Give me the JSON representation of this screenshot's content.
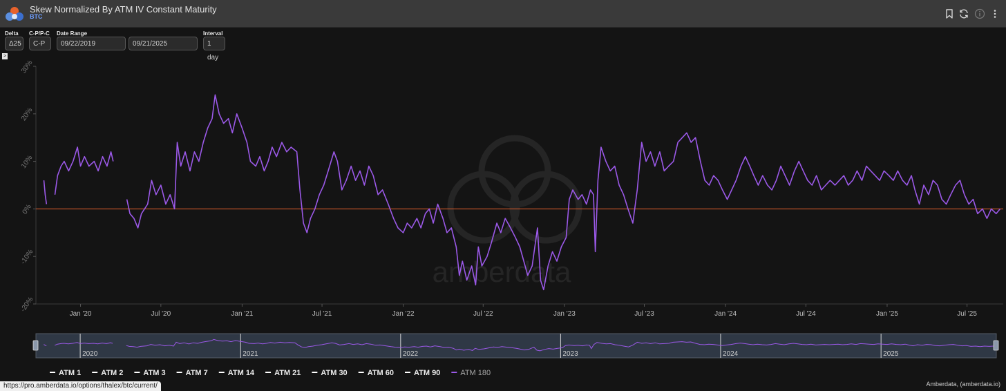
{
  "header": {
    "title": "Skew Normalized By ATM IV Constant Maturity",
    "subtitle": "BTC",
    "icons": [
      "bookmark-icon",
      "refresh-icon",
      "info-icon",
      "more-vertical-icon"
    ]
  },
  "controls": {
    "delta": {
      "label": "Delta",
      "value": "Δ25"
    },
    "cp": {
      "label": "C-P/P-C",
      "value": "C-P"
    },
    "date_range": {
      "label": "Date Range",
      "start": "09/22/2019",
      "end": "09/21/2025"
    },
    "interval": {
      "label": "Interval",
      "value": "1 day"
    }
  },
  "expand_toggle": ">",
  "watermark": "amberdata",
  "chart_data": {
    "type": "line",
    "xlabel": "",
    "ylabel": "",
    "ylim": [
      -20,
      30
    ],
    "yticks": [
      "-20%",
      "-10%",
      "0%",
      "10%",
      "20%",
      "30%"
    ],
    "xticks": [
      "Jan '20",
      "Jul '20",
      "Jan '21",
      "Jul '21",
      "Jan '22",
      "Jul '22",
      "Jan '23",
      "Jul '23",
      "Jan '24",
      "Jul '24",
      "Jan '25",
      "Jul '25"
    ],
    "xtick_dates": [
      "2020-01-01",
      "2020-07-01",
      "2021-01-01",
      "2021-07-01",
      "2022-01-01",
      "2022-07-01",
      "2023-01-01",
      "2023-07-01",
      "2024-01-01",
      "2024-07-01",
      "2025-01-01",
      "2025-07-01"
    ],
    "xlim": [
      "2019-09-22",
      "2025-09-21"
    ],
    "zero_line_color": "#e8622c",
    "series": [
      {
        "name": "ATM 180",
        "color": "#9b59e8",
        "segments": [
          [
            [
              "2019-10-10",
              6
            ],
            [
              "2019-10-13",
              3
            ],
            [
              "2019-10-16",
              1
            ]
          ],
          [
            [
              "2019-11-04",
              3
            ],
            [
              "2019-11-10",
              7
            ],
            [
              "2019-11-18",
              9
            ],
            [
              "2019-11-25",
              10
            ],
            [
              "2019-12-05",
              8
            ],
            [
              "2019-12-15",
              10
            ],
            [
              "2019-12-25",
              13
            ],
            [
              "2020-01-01",
              9
            ],
            [
              "2020-01-10",
              11
            ],
            [
              "2020-01-20",
              9
            ],
            [
              "2020-02-01",
              10
            ],
            [
              "2020-02-10",
              8
            ],
            [
              "2020-02-20",
              11
            ],
            [
              "2020-03-01",
              9
            ],
            [
              "2020-03-10",
              12
            ],
            [
              "2020-03-15",
              10
            ]
          ],
          [
            [
              "2020-04-15",
              2
            ],
            [
              "2020-04-22",
              -1
            ],
            [
              "2020-05-01",
              -2
            ],
            [
              "2020-05-10",
              -4
            ],
            [
              "2020-05-18",
              -1
            ],
            [
              "2020-05-25",
              0
            ],
            [
              "2020-06-01",
              1
            ],
            [
              "2020-06-10",
              6
            ],
            [
              "2020-06-20",
              3
            ],
            [
              "2020-07-01",
              5
            ],
            [
              "2020-07-12",
              1
            ],
            [
              "2020-07-22",
              3
            ],
            [
              "2020-08-01",
              0
            ],
            [
              "2020-08-07",
              14
            ],
            [
              "2020-08-15",
              9
            ],
            [
              "2020-08-25",
              12
            ],
            [
              "2020-09-05",
              8
            ],
            [
              "2020-09-15",
              12
            ],
            [
              "2020-09-25",
              10
            ],
            [
              "2020-10-05",
              14
            ],
            [
              "2020-10-15",
              17
            ],
            [
              "2020-10-25",
              19
            ],
            [
              "2020-11-01",
              24
            ],
            [
              "2020-11-10",
              20
            ],
            [
              "2020-11-20",
              18
            ],
            [
              "2020-12-01",
              19
            ],
            [
              "2020-12-10",
              16
            ],
            [
              "2020-12-20",
              20
            ],
            [
              "2021-01-01",
              17
            ],
            [
              "2021-01-12",
              14
            ],
            [
              "2021-01-20",
              10
            ],
            [
              "2021-02-01",
              9
            ],
            [
              "2021-02-10",
              11
            ],
            [
              "2021-02-20",
              8
            ],
            [
              "2021-03-01",
              10
            ],
            [
              "2021-03-10",
              13
            ],
            [
              "2021-03-20",
              11
            ],
            [
              "2021-04-01",
              14
            ],
            [
              "2021-04-12",
              12
            ],
            [
              "2021-04-22",
              13
            ],
            [
              "2021-05-05",
              12
            ],
            [
              "2021-05-12",
              4
            ],
            [
              "2021-05-20",
              -3
            ],
            [
              "2021-05-28",
              -5
            ],
            [
              "2021-06-05",
              -2
            ],
            [
              "2021-06-15",
              0
            ],
            [
              "2021-06-25",
              3
            ],
            [
              "2021-07-05",
              5
            ],
            [
              "2021-07-15",
              8
            ],
            [
              "2021-07-28",
              12
            ],
            [
              "2021-08-05",
              10
            ],
            [
              "2021-08-15",
              4
            ],
            [
              "2021-08-25",
              6
            ],
            [
              "2021-09-05",
              9
            ],
            [
              "2021-09-15",
              6
            ],
            [
              "2021-09-25",
              8
            ],
            [
              "2021-10-05",
              5
            ],
            [
              "2021-10-15",
              9
            ],
            [
              "2021-10-25",
              7
            ],
            [
              "2021-11-05",
              3
            ],
            [
              "2021-11-15",
              4
            ],
            [
              "2021-11-28",
              1
            ],
            [
              "2021-12-10",
              -2
            ],
            [
              "2021-12-20",
              -4
            ],
            [
              "2022-01-01",
              -5
            ],
            [
              "2022-01-10",
              -3
            ],
            [
              "2022-01-20",
              -4
            ],
            [
              "2022-02-01",
              -2
            ],
            [
              "2022-02-10",
              -4
            ],
            [
              "2022-02-20",
              -1
            ],
            [
              "2022-03-01",
              0
            ],
            [
              "2022-03-10",
              -3
            ],
            [
              "2022-03-20",
              1
            ],
            [
              "2022-04-01",
              -2
            ],
            [
              "2022-04-10",
              -5
            ],
            [
              "2022-04-20",
              -4
            ],
            [
              "2022-05-01",
              -8
            ],
            [
              "2022-05-08",
              -14
            ],
            [
              "2022-05-15",
              -11
            ],
            [
              "2022-05-25",
              -15
            ],
            [
              "2022-06-05",
              -12
            ],
            [
              "2022-06-14",
              -16
            ],
            [
              "2022-06-20",
              -8
            ],
            [
              "2022-06-28",
              -12
            ],
            [
              "2022-07-10",
              -10
            ],
            [
              "2022-07-20",
              -7
            ],
            [
              "2022-08-01",
              -3
            ],
            [
              "2022-08-10",
              -5
            ],
            [
              "2022-08-20",
              -2
            ],
            [
              "2022-09-01",
              -4
            ],
            [
              "2022-09-12",
              -6
            ],
            [
              "2022-09-22",
              -8
            ],
            [
              "2022-10-01",
              -11
            ],
            [
              "2022-10-10",
              -14
            ],
            [
              "2022-10-20",
              -12
            ],
            [
              "2022-11-01",
              -4
            ],
            [
              "2022-11-08",
              -15
            ],
            [
              "2022-11-15",
              -17
            ],
            [
              "2022-11-25",
              -12
            ],
            [
              "2022-12-05",
              -9
            ],
            [
              "2022-12-15",
              -11
            ],
            [
              "2022-12-25",
              -8
            ],
            [
              "2023-01-05",
              -6
            ],
            [
              "2023-01-12",
              2
            ],
            [
              "2023-01-20",
              4
            ],
            [
              "2023-02-01",
              2
            ],
            [
              "2023-02-10",
              3
            ],
            [
              "2023-02-20",
              1
            ],
            [
              "2023-03-01",
              4
            ],
            [
              "2023-03-08",
              3
            ],
            [
              "2023-03-12",
              -9
            ],
            [
              "2023-03-18",
              6
            ],
            [
              "2023-03-25",
              13
            ],
            [
              "2023-04-05",
              10
            ],
            [
              "2023-04-15",
              8
            ],
            [
              "2023-04-25",
              9
            ],
            [
              "2023-05-05",
              5
            ],
            [
              "2023-05-15",
              3
            ],
            [
              "2023-05-25",
              0
            ],
            [
              "2023-06-05",
              -3
            ],
            [
              "2023-06-15",
              4
            ],
            [
              "2023-06-25",
              14
            ],
            [
              "2023-07-05",
              10
            ],
            [
              "2023-07-15",
              12
            ],
            [
              "2023-07-25",
              9
            ],
            [
              "2023-08-05",
              12
            ],
            [
              "2023-08-15",
              8
            ],
            [
              "2023-08-25",
              9
            ],
            [
              "2023-09-05",
              10
            ],
            [
              "2023-09-15",
              14
            ],
            [
              "2023-09-25",
              15
            ],
            [
              "2023-10-05",
              16
            ],
            [
              "2023-10-15",
              14
            ],
            [
              "2023-10-25",
              15
            ],
            [
              "2023-11-05",
              10
            ],
            [
              "2023-11-15",
              6
            ],
            [
              "2023-11-25",
              5
            ],
            [
              "2023-12-05",
              7
            ],
            [
              "2023-12-15",
              6
            ],
            [
              "2023-12-25",
              4
            ],
            [
              "2024-01-05",
              2
            ],
            [
              "2024-01-15",
              4
            ],
            [
              "2024-01-25",
              6
            ],
            [
              "2024-02-05",
              9
            ],
            [
              "2024-02-15",
              11
            ],
            [
              "2024-02-25",
              9
            ],
            [
              "2024-03-05",
              7
            ],
            [
              "2024-03-15",
              5
            ],
            [
              "2024-03-25",
              7
            ],
            [
              "2024-04-05",
              5
            ],
            [
              "2024-04-15",
              4
            ],
            [
              "2024-04-25",
              6
            ],
            [
              "2024-05-05",
              9
            ],
            [
              "2024-05-15",
              7
            ],
            [
              "2024-05-25",
              5
            ],
            [
              "2024-06-05",
              8
            ],
            [
              "2024-06-15",
              10
            ],
            [
              "2024-06-25",
              8
            ],
            [
              "2024-07-05",
              6
            ],
            [
              "2024-07-15",
              5
            ],
            [
              "2024-07-25",
              7
            ],
            [
              "2024-08-05",
              4
            ],
            [
              "2024-08-15",
              5
            ],
            [
              "2024-08-25",
              6
            ],
            [
              "2024-09-05",
              5
            ],
            [
              "2024-09-15",
              6
            ],
            [
              "2024-09-25",
              7
            ],
            [
              "2024-10-05",
              5
            ],
            [
              "2024-10-15",
              6
            ],
            [
              "2024-10-25",
              8
            ],
            [
              "2024-11-05",
              6
            ],
            [
              "2024-11-15",
              9
            ],
            [
              "2024-11-25",
              8
            ],
            [
              "2024-12-05",
              7
            ],
            [
              "2024-12-15",
              6
            ],
            [
              "2024-12-25",
              8
            ],
            [
              "2025-01-05",
              7
            ],
            [
              "2025-01-15",
              6
            ],
            [
              "2025-01-25",
              8
            ],
            [
              "2025-02-05",
              6
            ],
            [
              "2025-02-15",
              5
            ],
            [
              "2025-02-25",
              7
            ],
            [
              "2025-03-05",
              4
            ],
            [
              "2025-03-15",
              1
            ],
            [
              "2025-03-25",
              5
            ],
            [
              "2025-04-05",
              3
            ],
            [
              "2025-04-15",
              6
            ],
            [
              "2025-04-25",
              5
            ],
            [
              "2025-05-05",
              2
            ],
            [
              "2025-05-15",
              1
            ],
            [
              "2025-05-25",
              3
            ],
            [
              "2025-06-05",
              5
            ],
            [
              "2025-06-15",
              6
            ],
            [
              "2025-06-25",
              3
            ],
            [
              "2025-07-05",
              1
            ],
            [
              "2025-07-15",
              2
            ],
            [
              "2025-07-25",
              -1
            ],
            [
              "2025-08-05",
              0
            ],
            [
              "2025-08-15",
              -2
            ],
            [
              "2025-08-25",
              0
            ],
            [
              "2025-09-05",
              -1
            ],
            [
              "2025-09-14",
              0
            ]
          ]
        ]
      }
    ]
  },
  "navigator": {
    "labels": [
      "2020",
      "2021",
      "2022",
      "2023",
      "2024",
      "2025"
    ],
    "label_dates": [
      "2020-01-01",
      "2021-01-01",
      "2022-01-01",
      "2023-01-01",
      "2024-01-01",
      "2025-01-01"
    ]
  },
  "legend": {
    "items": [
      {
        "label": "ATM 1",
        "color": "#ffffff",
        "active": false
      },
      {
        "label": "ATM 2",
        "color": "#ffffff",
        "active": false
      },
      {
        "label": "ATM 3",
        "color": "#ffffff",
        "active": false
      },
      {
        "label": "ATM 7",
        "color": "#ffffff",
        "active": false
      },
      {
        "label": "ATM 14",
        "color": "#ffffff",
        "active": false
      },
      {
        "label": "ATM 21",
        "color": "#ffffff",
        "active": false
      },
      {
        "label": "ATM 30",
        "color": "#ffffff",
        "active": false
      },
      {
        "label": "ATM 60",
        "color": "#ffffff",
        "active": false
      },
      {
        "label": "ATM 90",
        "color": "#ffffff",
        "active": false
      },
      {
        "label": "ATM 180",
        "color": "#9b59e8",
        "active": true
      }
    ]
  },
  "status_url": "https://pro.amberdata.io/options/thalex/btc/current/",
  "credit": "Amberdata, (amberdata.io)"
}
